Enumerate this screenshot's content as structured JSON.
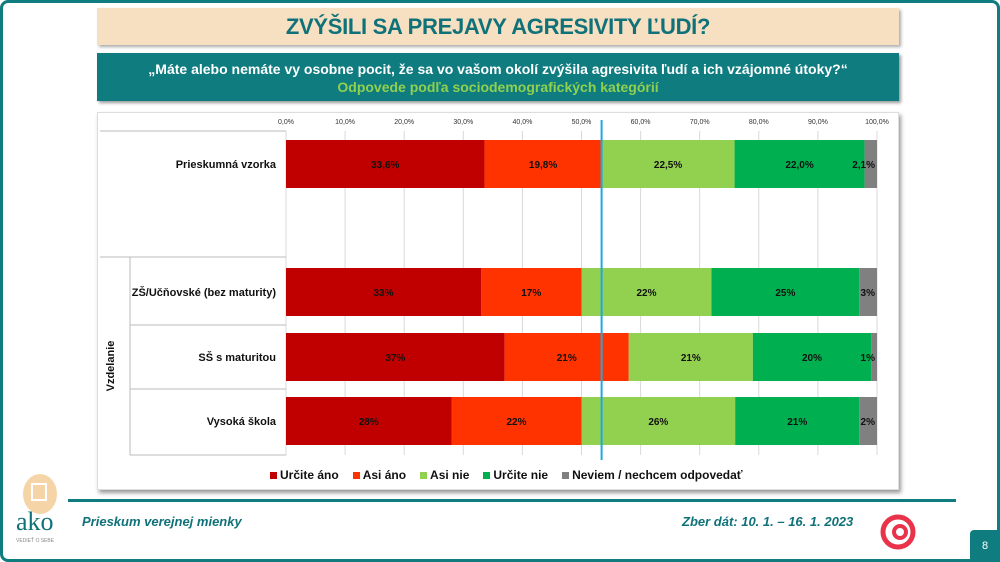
{
  "header": {
    "title": "ZVÝŠILI SA PREJAVY AGRESIVITY ĽUDÍ?",
    "question": "„Máte alebo nemáte vy osobne pocit, že sa vo vašom okolí zvýšila agresivita ľudí a ich vzájomné útoky?“",
    "subtitle": "Odpovede podľa sociodemografických kategórií"
  },
  "chart_data": {
    "type": "bar",
    "orientation": "horizontal-stacked-100",
    "xlim": [
      0,
      100
    ],
    "ticks": [
      "0,0%",
      "10,0%",
      "20,0%",
      "30,0%",
      "40,0%",
      "50,0%",
      "60,0%",
      "70,0%",
      "80,0%",
      "90,0%",
      "100,0%"
    ],
    "group_label": "Vzdelanie",
    "categories": [
      "Prieskumná vzorka",
      "ZŠ/Učňovské (bez maturity)",
      "SŠ s maturitou",
      "Vysoká škola"
    ],
    "series": [
      {
        "name": "Určite áno",
        "color": "#c00000",
        "values": [
          33.6,
          33,
          37,
          28
        ],
        "labels": [
          "33,6%",
          "33%",
          "37%",
          "28%"
        ]
      },
      {
        "name": "Asi áno",
        "color": "#ff3300",
        "values": [
          19.8,
          17,
          21,
          22
        ],
        "labels": [
          "19,8%",
          "17%",
          "21%",
          "22%"
        ]
      },
      {
        "name": "Asi nie",
        "color": "#92d050",
        "values": [
          22.5,
          22,
          21,
          26
        ],
        "labels": [
          "22,5%",
          "22%",
          "21%",
          "26%"
        ]
      },
      {
        "name": "Určite nie",
        "color": "#00b050",
        "values": [
          22.0,
          25,
          20,
          21
        ],
        "labels": [
          "22,0%",
          "25%",
          "20%",
          "21%"
        ]
      },
      {
        "name": "Neviem / nechcem odpovedať",
        "color": "#808080",
        "values": [
          2.1,
          3,
          1,
          2
        ],
        "labels": [
          "2,1%",
          "3%",
          "1%",
          "2%"
        ]
      }
    ],
    "reference_line": {
      "value": 53.4,
      "color": "#1fa8e0"
    },
    "legend": "bottom",
    "grid": true
  },
  "footer": {
    "left": "Prieskum verejnej mienky",
    "right": "Zber dát: 10. 1. – 16. 1. 2023",
    "page": "8",
    "logo_text": "ako",
    "logo_tagline": "VEDIEŤ O SEBE"
  }
}
